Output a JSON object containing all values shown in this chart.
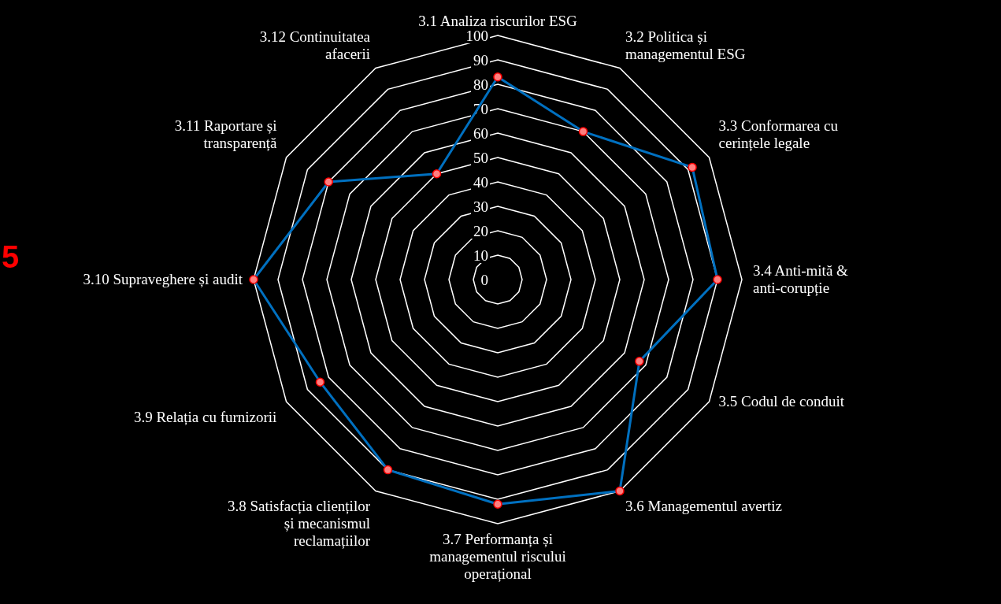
{
  "chart_data": {
    "type": "radar",
    "categories": [
      "3.1 Analiza riscurilor ESG",
      "3.2 Politica și managementul ESG",
      "3.3 Conformarea cu cerințele legale",
      "3.4 Anti-mită & anti-corupție",
      "3.5 Codul de conduit",
      "3.6 Managementul avertiz",
      "3.7 Performanța și managementul riscului operațional",
      "3.8 Satisfacția clienților și mecanismul reclamațiilor",
      "3.9 Relația cu furnizorii",
      "3.10 Supraveghere și audit",
      "3.11 Raportare și transparență",
      "3.12 Continuitatea afacerii"
    ],
    "series": [
      {
        "color": "#0070c0",
        "values": [
          83,
          70,
          92,
          90,
          67,
          100,
          92,
          90,
          84,
          100,
          80,
          50
        ]
      }
    ],
    "ylim": [
      0,
      100
    ],
    "yticks": [
      0,
      10,
      20,
      30,
      40,
      50,
      60,
      70,
      80,
      90,
      100
    ],
    "grid": true,
    "marker": "circle",
    "annotations": [
      "5"
    ]
  }
}
